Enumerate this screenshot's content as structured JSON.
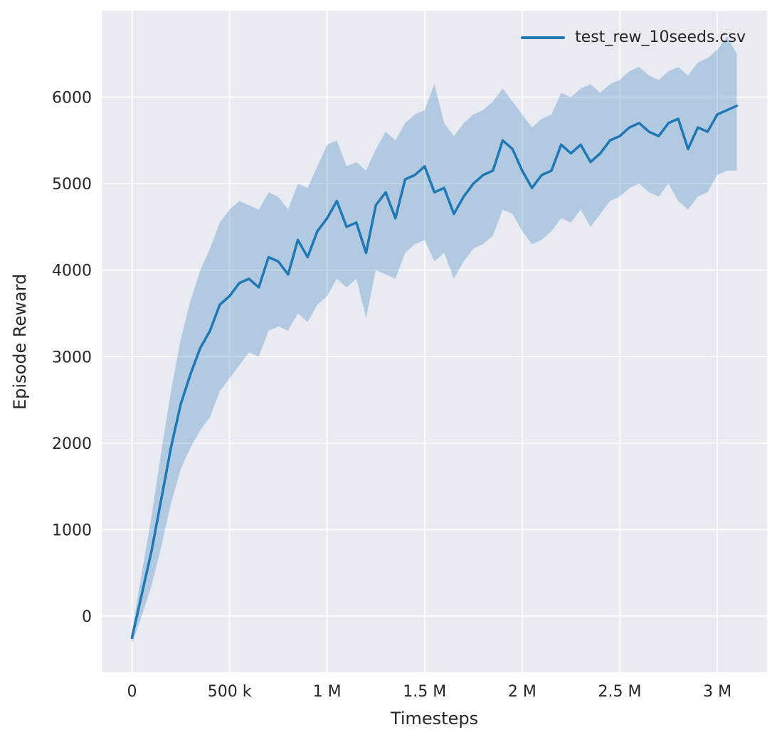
{
  "figure": {
    "background": "#ffffff",
    "axes_background": "#eaeaf2",
    "grid_color": "#ffffff",
    "text_color": "#262626",
    "accent": "#1f77b4"
  },
  "chart_data": {
    "type": "line",
    "title": "",
    "xlabel": "Timesteps",
    "ylabel": "Episode Reward",
    "legend_label": "test_rew_10seeds.csv",
    "legend_position": "upper right",
    "grid": true,
    "xlim": [
      -155000,
      3255000
    ],
    "ylim": [
      -650,
      7000
    ],
    "xticks": [
      {
        "value": 0,
        "label": "0"
      },
      {
        "value": 500000,
        "label": "500 k"
      },
      {
        "value": 1000000,
        "label": "1 M"
      },
      {
        "value": 1500000,
        "label": "1.5 M"
      },
      {
        "value": 2000000,
        "label": "2 M"
      },
      {
        "value": 2500000,
        "label": "2.5 M"
      },
      {
        "value": 3000000,
        "label": "3 M"
      }
    ],
    "yticks": [
      {
        "value": 0,
        "label": "0"
      },
      {
        "value": 1000,
        "label": "1000"
      },
      {
        "value": 2000,
        "label": "2000"
      },
      {
        "value": 3000,
        "label": "3000"
      },
      {
        "value": 4000,
        "label": "4000"
      },
      {
        "value": 5000,
        "label": "5000"
      },
      {
        "value": 6000,
        "label": "6000"
      }
    ],
    "series": [
      {
        "name": "test_rew_10seeds.csv",
        "color": "#1f77b4",
        "line_width": 3.5,
        "band_opacity": 0.27,
        "x": [
          0,
          50000,
          100000,
          150000,
          200000,
          250000,
          300000,
          350000,
          400000,
          450000,
          500000,
          550000,
          600000,
          650000,
          700000,
          750000,
          800000,
          850000,
          900000,
          950000,
          1000000,
          1050000,
          1100000,
          1150000,
          1200000,
          1250000,
          1300000,
          1350000,
          1400000,
          1450000,
          1500000,
          1550000,
          1600000,
          1650000,
          1700000,
          1750000,
          1800000,
          1850000,
          1900000,
          1950000,
          2000000,
          2050000,
          2100000,
          2150000,
          2200000,
          2250000,
          2300000,
          2350000,
          2400000,
          2450000,
          2500000,
          2550000,
          2600000,
          2650000,
          2700000,
          2750000,
          2800000,
          2850000,
          2900000,
          2950000,
          3000000,
          3050000,
          3100000
        ],
        "mean": [
          -250,
          250,
          750,
          1350,
          1950,
          2450,
          2800,
          3100,
          3300,
          3600,
          3700,
          3850,
          3900,
          3800,
          4150,
          4100,
          3950,
          4350,
          4150,
          4450,
          4600,
          4800,
          4500,
          4550,
          4200,
          4750,
          4900,
          4600,
          5050,
          5100,
          5200,
          4900,
          4950,
          4650,
          4850,
          5000,
          5100,
          5150,
          5500,
          5400,
          5150,
          4950,
          5100,
          5150,
          5450,
          5350,
          5450,
          5250,
          5350,
          5500,
          5550,
          5650,
          5700,
          5600,
          5550,
          5700,
          5750,
          5400,
          5650,
          5600,
          5800,
          5850,
          5900
        ],
        "lower": [
          -320,
          0,
          350,
          800,
          1300,
          1700,
          1950,
          2150,
          2300,
          2600,
          2750,
          2900,
          3050,
          3000,
          3300,
          3350,
          3300,
          3500,
          3400,
          3600,
          3700,
          3900,
          3800,
          3900,
          3450,
          4000,
          3950,
          3900,
          4200,
          4300,
          4350,
          4100,
          4200,
          3900,
          4100,
          4250,
          4300,
          4400,
          4700,
          4650,
          4450,
          4300,
          4350,
          4450,
          4600,
          4550,
          4700,
          4500,
          4650,
          4800,
          4850,
          4950,
          5000,
          4900,
          4850,
          5000,
          4800,
          4700,
          4850,
          4900,
          5100,
          5150,
          5150
        ],
        "upper": [
          -180,
          500,
          1150,
          1900,
          2600,
          3200,
          3650,
          4000,
          4250,
          4550,
          4700,
          4800,
          4750,
          4700,
          4900,
          4850,
          4700,
          5000,
          4950,
          5200,
          5450,
          5500,
          5200,
          5250,
          5150,
          5400,
          5600,
          5500,
          5700,
          5800,
          5850,
          6150,
          5700,
          5550,
          5700,
          5800,
          5850,
          5950,
          6100,
          5950,
          5800,
          5650,
          5750,
          5800,
          6050,
          6000,
          6100,
          6150,
          6050,
          6150,
          6200,
          6300,
          6350,
          6250,
          6200,
          6300,
          6350,
          6250,
          6400,
          6450,
          6550,
          6700,
          6500
        ]
      }
    ]
  }
}
